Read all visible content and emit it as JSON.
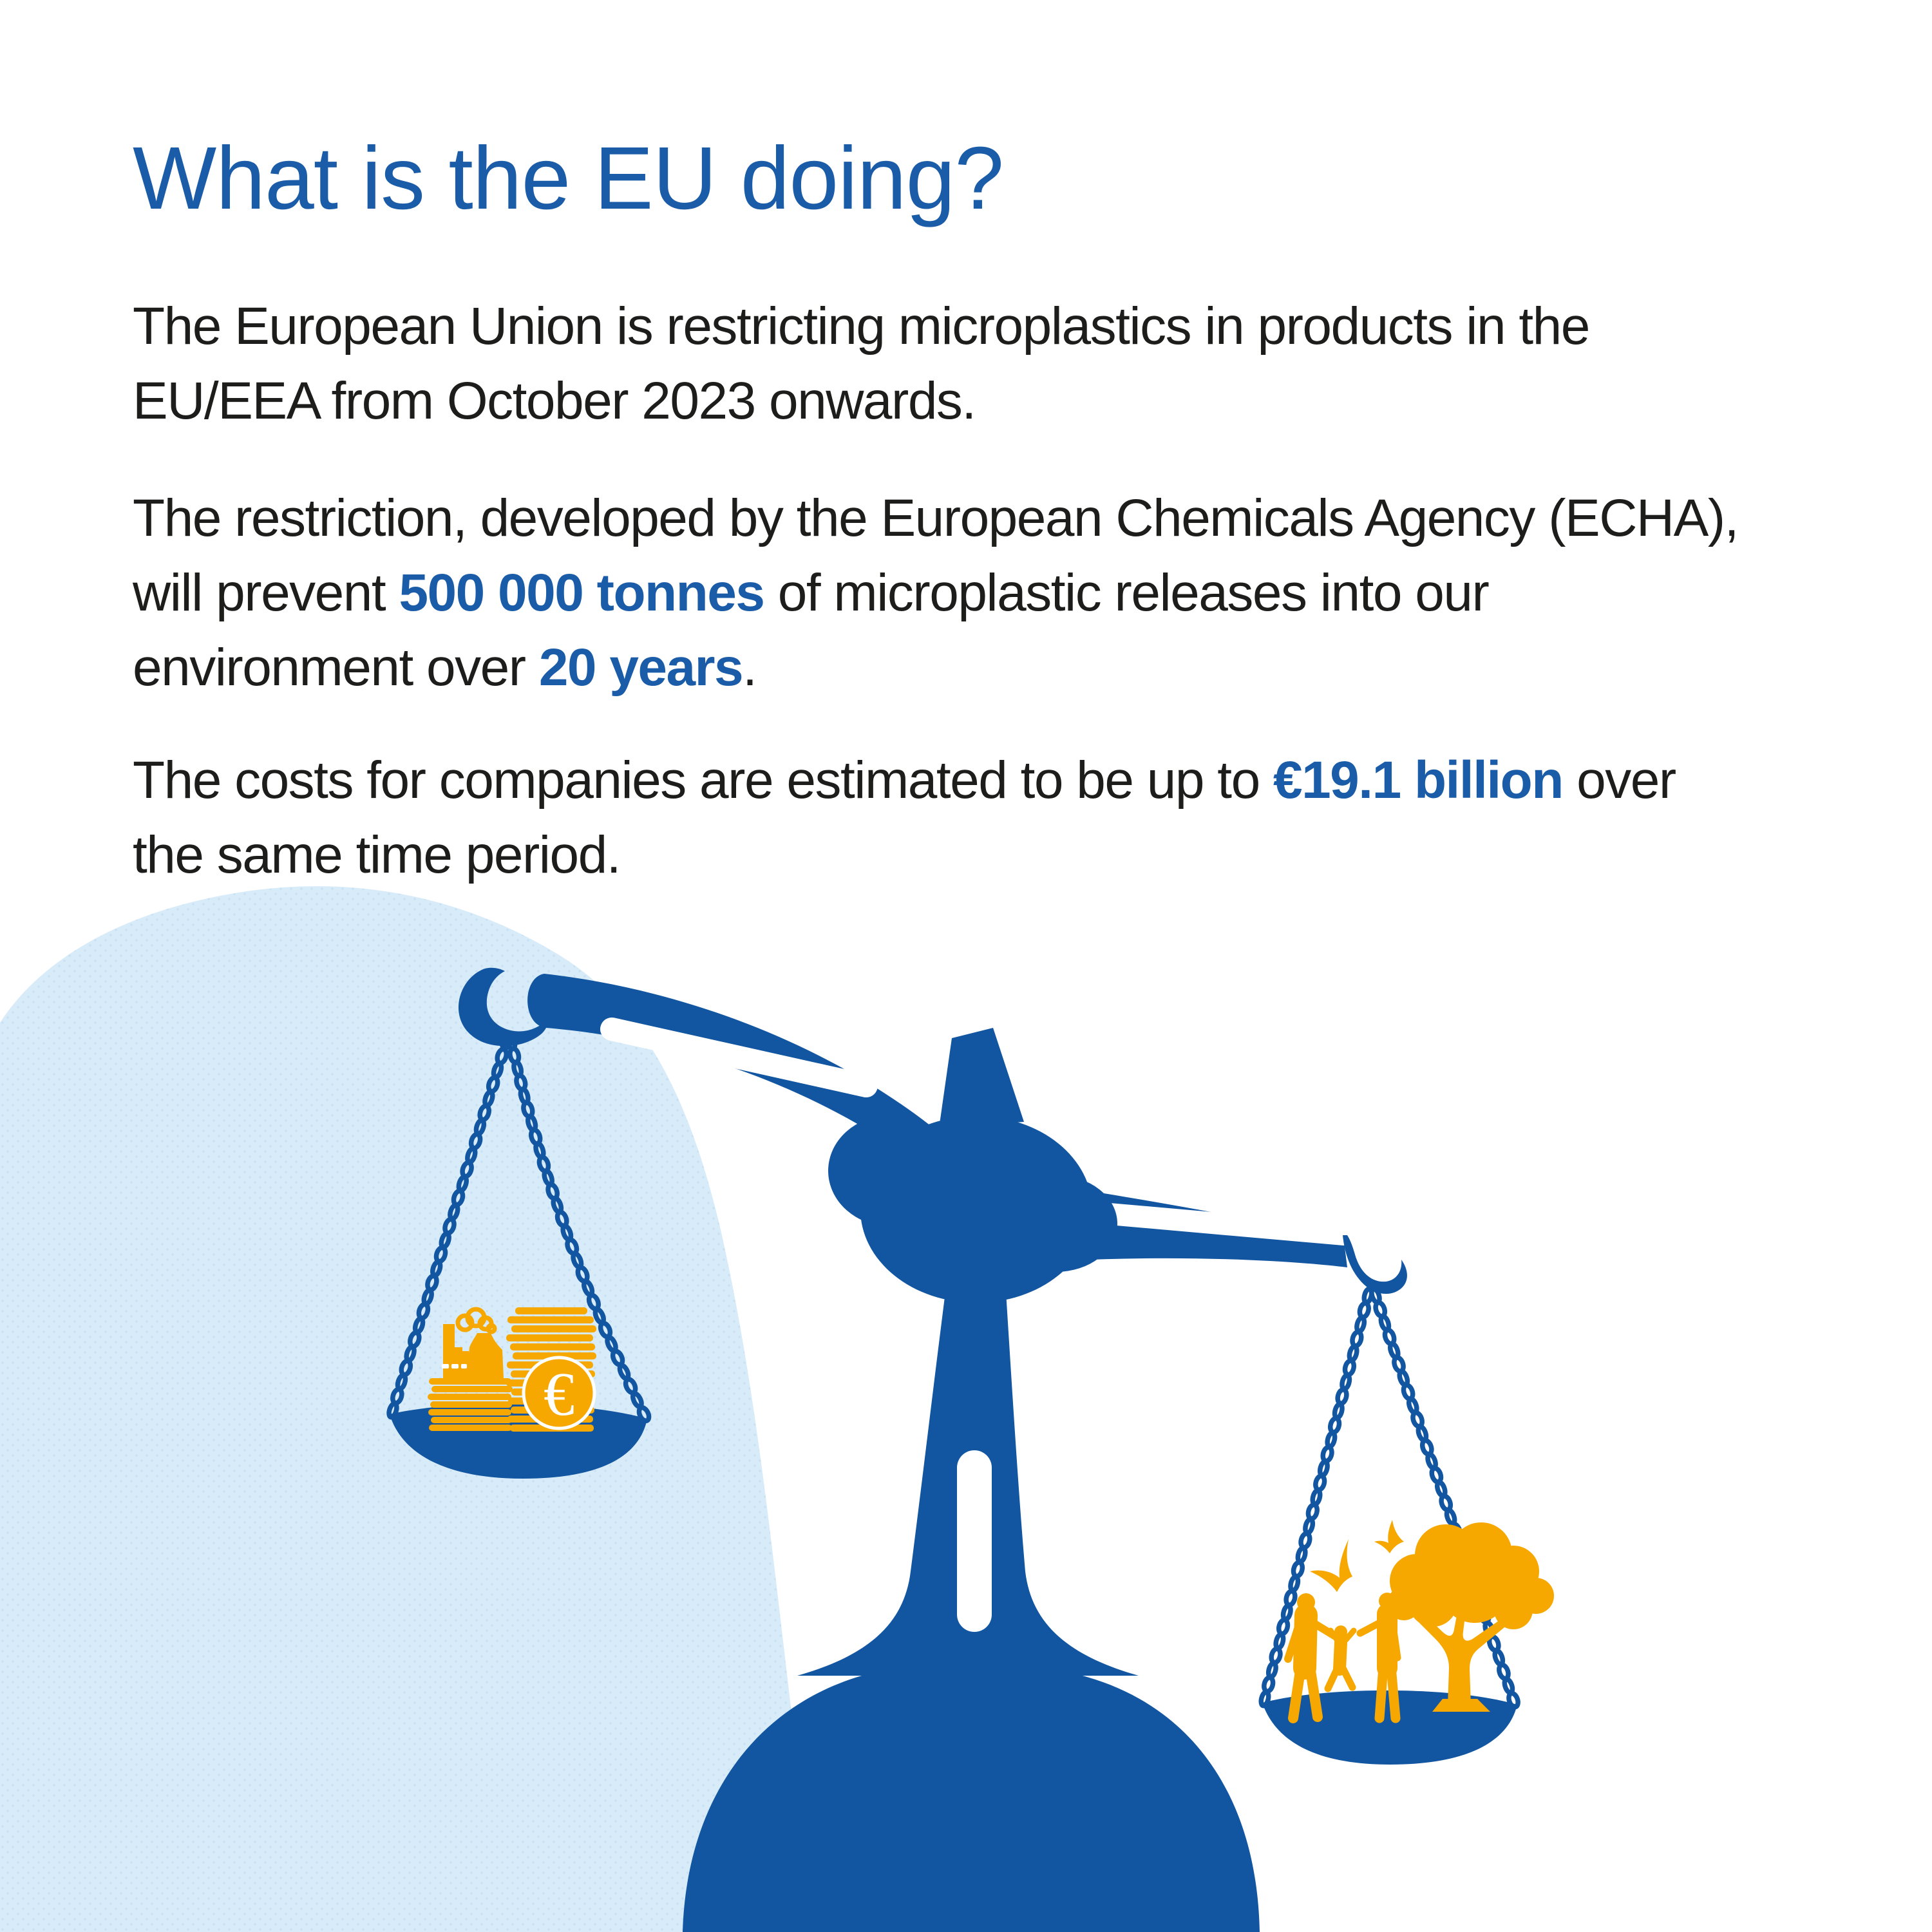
{
  "title": "What is the EU doing?",
  "paragraphs": {
    "p1_l1": "The European Union is restricting microplastics in products in the",
    "p1_l2": "EU/EEA from October 2023 onwards.",
    "p2_l1": "The restriction, developed by the European Chemicals Agency (ECHA),",
    "p2_l2a": "will prevent ",
    "p2_l2b": "500 000 tonnes",
    "p2_l2c": " of microplastic releases into our",
    "p2_l3a": "environment over ",
    "p2_l3b": "20 years",
    "p2_l3c": ".",
    "p3_l1a": "The costs for companies are estimated to be up to ",
    "p3_l1b": "€19.1 billion",
    "p3_l1c": " over",
    "p3_l2": "the same time period."
  },
  "key_figures": {
    "tonnes_prevented": "500 000 tonnes",
    "timeframe": "20 years",
    "company_costs": "€19.1 billion",
    "restriction_start": "October 2023"
  },
  "illustration": {
    "euro_symbol": "€",
    "icons": [
      "balance-scale-icon",
      "factory-icon",
      "coin-stack-icon",
      "euro-coin-icon",
      "family-icon",
      "tree-icon",
      "bird-icon"
    ]
  },
  "colors": {
    "brand_blue": "#1B5CA8",
    "scale_blue": "#1256A2",
    "accent_orange": "#F6A800",
    "light_blue_bg": "#D8EBF9",
    "bg_dot": "#C8E1F4",
    "text_dark": "#1D1D1B"
  }
}
